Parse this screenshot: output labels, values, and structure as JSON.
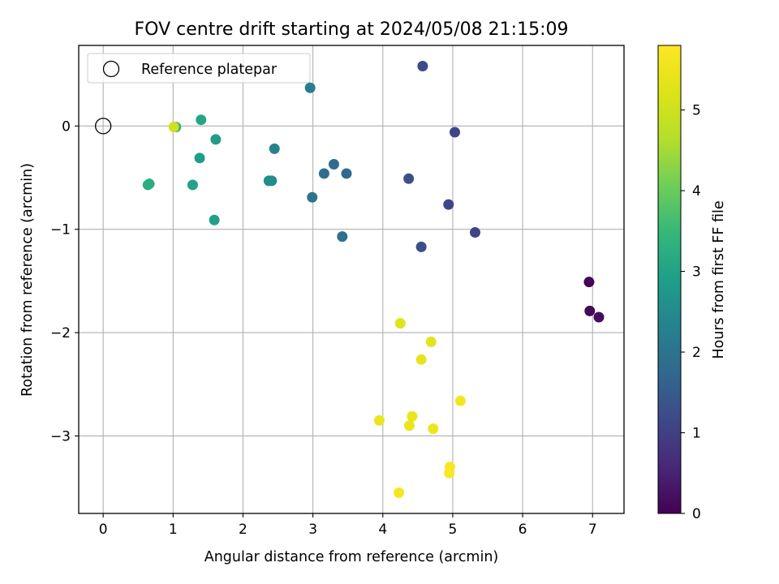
{
  "chart_data": {
    "type": "scatter",
    "title": "FOV centre drift starting at 2024/05/08 21:15:09",
    "xlabel": "Angular distance from reference (arcmin)",
    "ylabel": "Rotation from reference (arcmin)",
    "xlim": [
      -0.35,
      7.45
    ],
    "ylim": [
      -3.75,
      0.78
    ],
    "xticks": [
      0,
      1,
      2,
      3,
      4,
      5,
      6,
      7
    ],
    "yticks": [
      0,
      -1,
      -2,
      -3
    ],
    "grid": true,
    "legend": {
      "location": "upper-left",
      "entries": [
        "Reference platepar"
      ]
    },
    "reference_point": {
      "x": 0,
      "y": 0
    },
    "colorbar": {
      "label": "Hours from first FF file",
      "colormap": "viridis",
      "range": [
        0,
        5.8
      ],
      "ticks": [
        0,
        1,
        2,
        3,
        4,
        5
      ]
    },
    "series": [
      {
        "points": [
          {
            "x": 6.95,
            "y": -1.51,
            "c": 0.05
          },
          {
            "x": 6.96,
            "y": -1.79,
            "c": 0.1
          },
          {
            "x": 7.09,
            "y": -1.85,
            "c": 0.15
          },
          {
            "x": 5.32,
            "y": -1.03,
            "c": 1.05
          },
          {
            "x": 4.94,
            "y": -0.76,
            "c": 1.1
          },
          {
            "x": 5.03,
            "y": -0.06,
            "c": 1.1
          },
          {
            "x": 4.57,
            "y": 0.58,
            "c": 1.2
          },
          {
            "x": 4.55,
            "y": -1.17,
            "c": 1.25
          },
          {
            "x": 4.37,
            "y": -0.51,
            "c": 1.3
          },
          {
            "x": 3.48,
            "y": -0.46,
            "c": 1.75
          },
          {
            "x": 3.3,
            "y": -0.37,
            "c": 1.8
          },
          {
            "x": 3.16,
            "y": -0.46,
            "c": 1.85
          },
          {
            "x": 3.42,
            "y": -1.07,
            "c": 1.9
          },
          {
            "x": 2.99,
            "y": -0.69,
            "c": 2.0
          },
          {
            "x": 2.96,
            "y": 0.37,
            "c": 2.2
          },
          {
            "x": 2.45,
            "y": -0.22,
            "c": 2.35
          },
          {
            "x": 2.41,
            "y": -0.53,
            "c": 2.5
          },
          {
            "x": 2.37,
            "y": -0.53,
            "c": 2.55
          },
          {
            "x": 1.61,
            "y": -0.13,
            "c": 2.85
          },
          {
            "x": 1.38,
            "y": -0.31,
            "c": 2.9
          },
          {
            "x": 1.59,
            "y": -0.91,
            "c": 2.95
          },
          {
            "x": 1.28,
            "y": -0.57,
            "c": 3.0
          },
          {
            "x": 1.4,
            "y": 0.06,
            "c": 3.05
          },
          {
            "x": 0.66,
            "y": -0.56,
            "c": 3.2
          },
          {
            "x": 0.64,
            "y": -0.57,
            "c": 3.25
          },
          {
            "x": 1.04,
            "y": -0.01,
            "c": 3.3
          },
          {
            "x": 4.25,
            "y": -1.91,
            "c": 5.3
          },
          {
            "x": 4.69,
            "y": -2.09,
            "c": 5.35
          },
          {
            "x": 4.55,
            "y": -2.26,
            "c": 5.4
          },
          {
            "x": 3.95,
            "y": -2.85,
            "c": 5.45
          },
          {
            "x": 4.42,
            "y": -2.81,
            "c": 5.5
          },
          {
            "x": 4.38,
            "y": -2.9,
            "c": 5.5
          },
          {
            "x": 4.72,
            "y": -2.93,
            "c": 5.55
          },
          {
            "x": 5.11,
            "y": -2.66,
            "c": 5.6
          },
          {
            "x": 4.23,
            "y": -3.55,
            "c": 5.65
          },
          {
            "x": 4.96,
            "y": -3.3,
            "c": 5.7
          },
          {
            "x": 4.95,
            "y": -3.36,
            "c": 5.75
          },
          {
            "x": 1.01,
            "y": -0.01,
            "c": 5.0
          }
        ]
      }
    ]
  }
}
